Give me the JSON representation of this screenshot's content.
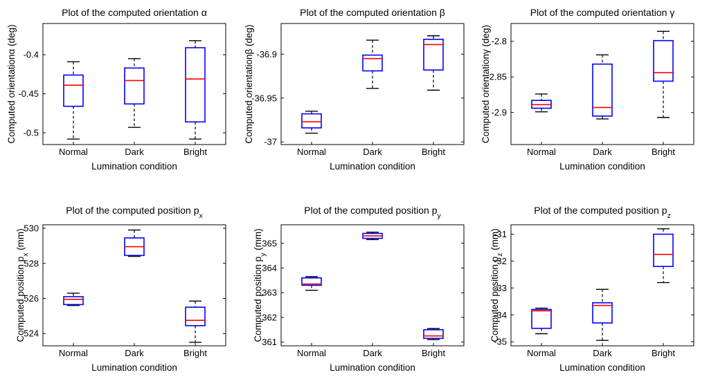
{
  "chart_data": [
    {
      "type": "box",
      "title": "Plot of the computed orientation α",
      "title_main": "Plot of the computed orientation",
      "title_symbol": "α",
      "xlabel": "Lumination condition",
      "ylabel": "Computed orientationα (deg)",
      "ylabel_main": "Computed orientation",
      "ylabel_symbol": "α",
      "ylabel_unit": " (deg)",
      "ylim": [
        -0.515,
        -0.36
      ],
      "yticks": [
        -0.5,
        -0.45,
        -0.4
      ],
      "ytick_labels": [
        "-0.5",
        "-0.45",
        "-0.4"
      ],
      "categories": [
        "Normal",
        "Dark",
        "Bright"
      ],
      "boxes": [
        {
          "min": -0.508,
          "q1": -0.466,
          "median": -0.439,
          "q3": -0.426,
          "max": -0.409
        },
        {
          "min": -0.493,
          "q1": -0.463,
          "median": -0.433,
          "q3": -0.417,
          "max": -0.405
        },
        {
          "min": -0.508,
          "q1": -0.486,
          "median": -0.431,
          "q3": -0.391,
          "max": -0.382
        }
      ]
    },
    {
      "type": "box",
      "title": "Plot of the computed orientation β",
      "title_main": "Plot of the computed orientation",
      "title_symbol": "β",
      "xlabel": "Lumination condition",
      "ylabel": "Computed orientationβ (deg)",
      "ylabel_main": "Computed orientation",
      "ylabel_symbol": "β",
      "ylabel_unit": " (deg)",
      "ylim": [
        -37.003,
        -36.865
      ],
      "yticks": [
        -37,
        -36.95,
        -36.9
      ],
      "ytick_labels": [
        "-37",
        "-36.95",
        "-36.9"
      ],
      "categories": [
        "Normal",
        "Dark",
        "Bright"
      ],
      "boxes": [
        {
          "min": -36.99,
          "q1": -36.984,
          "median": -36.977,
          "q3": -36.968,
          "max": -36.965
        },
        {
          "min": -36.939,
          "q1": -36.919,
          "median": -36.905,
          "q3": -36.901,
          "max": -36.884
        },
        {
          "min": -36.941,
          "q1": -36.918,
          "median": -36.889,
          "q3": -36.883,
          "max": -36.879
        }
      ]
    },
    {
      "type": "box",
      "title": "Plot of the computed orientation γ",
      "title_main": "Plot of the computed orientation",
      "title_symbol": "γ",
      "xlabel": "Lumination condition",
      "ylabel": "Computed orientationγ (deg)",
      "ylabel_main": "Computed orientation",
      "ylabel_symbol": "γ",
      "ylabel_unit": " (deg)",
      "ylim": [
        -2.945,
        -2.775
      ],
      "yticks": [
        -2.9,
        -2.85,
        -2.8
      ],
      "ytick_labels": [
        "-2.9",
        "-2.85",
        "-2.8"
      ],
      "categories": [
        "Normal",
        "Dark",
        "Bright"
      ],
      "boxes": [
        {
          "min": -2.899,
          "q1": -2.894,
          "median": -2.889,
          "q3": -2.883,
          "max": -2.874
        },
        {
          "min": -2.909,
          "q1": -2.905,
          "median": -2.893,
          "q3": -2.832,
          "max": -2.819
        },
        {
          "min": -2.907,
          "q1": -2.856,
          "median": -2.844,
          "q3": -2.799,
          "max": -2.786
        }
      ]
    },
    {
      "type": "box",
      "title": "Plot of the computed position px",
      "title_main": "Plot of the computed position p",
      "title_sub": "x",
      "xlabel": "Lumination condition",
      "ylabel": "Computed position px (mm)",
      "ylabel_main": "Computed position p",
      "ylabel_sub": "x",
      "ylabel_unit": " (mm)",
      "ylim": [
        523.3,
        530.2
      ],
      "yticks": [
        524,
        526,
        528,
        530
      ],
      "ytick_labels": [
        "524",
        "526",
        "528",
        "530"
      ],
      "categories": [
        "Normal",
        "Dark",
        "Bright"
      ],
      "boxes": [
        {
          "min": 525.6,
          "q1": 525.65,
          "median": 525.95,
          "q3": 526.1,
          "max": 526.3
        },
        {
          "min": 528.4,
          "q1": 528.45,
          "median": 528.95,
          "q3": 529.45,
          "max": 529.9
        },
        {
          "min": 523.5,
          "q1": 524.45,
          "median": 524.75,
          "q3": 525.5,
          "max": 525.85
        }
      ]
    },
    {
      "type": "box",
      "title": "Plot of the computed position py",
      "title_main": "Plot of the computed position p",
      "title_sub": "y",
      "xlabel": "Lumination condition",
      "ylabel": "Computed position py (mm)",
      "ylabel_main": "Computed position p",
      "ylabel_sub": "y",
      "ylabel_unit": " (mm)",
      "ylim": [
        360.85,
        365.75
      ],
      "yticks": [
        361,
        362,
        363,
        364,
        365
      ],
      "ytick_labels": [
        "361",
        "362",
        "363",
        "364",
        "365"
      ],
      "categories": [
        "Normal",
        "Dark",
        "Bright"
      ],
      "boxes": [
        {
          "min": 363.1,
          "q1": 363.3,
          "median": 363.35,
          "q3": 363.6,
          "max": 363.65
        },
        {
          "min": 365.15,
          "q1": 365.2,
          "median": 365.3,
          "q3": 365.4,
          "max": 365.45
        },
        {
          "min": 361.1,
          "q1": 361.15,
          "median": 361.25,
          "q3": 361.5,
          "max": 361.55
        }
      ]
    },
    {
      "type": "box",
      "title": "Plot of the computed position pz",
      "title_main": "Plot of the computed position p",
      "title_sub": "z",
      "xlabel": "Lumination condition",
      "ylabel": "Computed position pz (mm)",
      "ylabel_main": "Computed position p",
      "ylabel_sub": "z",
      "ylabel_unit": " (mm)",
      "ylim": [
        -35.15,
        -30.65
      ],
      "yticks": [
        -35,
        -34,
        -33,
        -32,
        -31
      ],
      "ytick_labels": [
        "-35",
        "-34",
        "-33",
        "-32",
        "-31"
      ],
      "categories": [
        "Normal",
        "Dark",
        "Bright"
      ],
      "boxes": [
        {
          "min": -34.7,
          "q1": -34.5,
          "median": -33.85,
          "q3": -33.8,
          "max": -33.75
        },
        {
          "min": -34.95,
          "q1": -34.3,
          "median": -33.65,
          "q3": -33.55,
          "max": -33.05
        },
        {
          "min": -32.8,
          "q1": -32.2,
          "median": -31.75,
          "q3": -31.0,
          "max": -30.8
        }
      ]
    }
  ],
  "colors": {
    "box": "#0000ff",
    "median": "#ff0000",
    "whisker": "#000000",
    "axes": "#000000"
  }
}
